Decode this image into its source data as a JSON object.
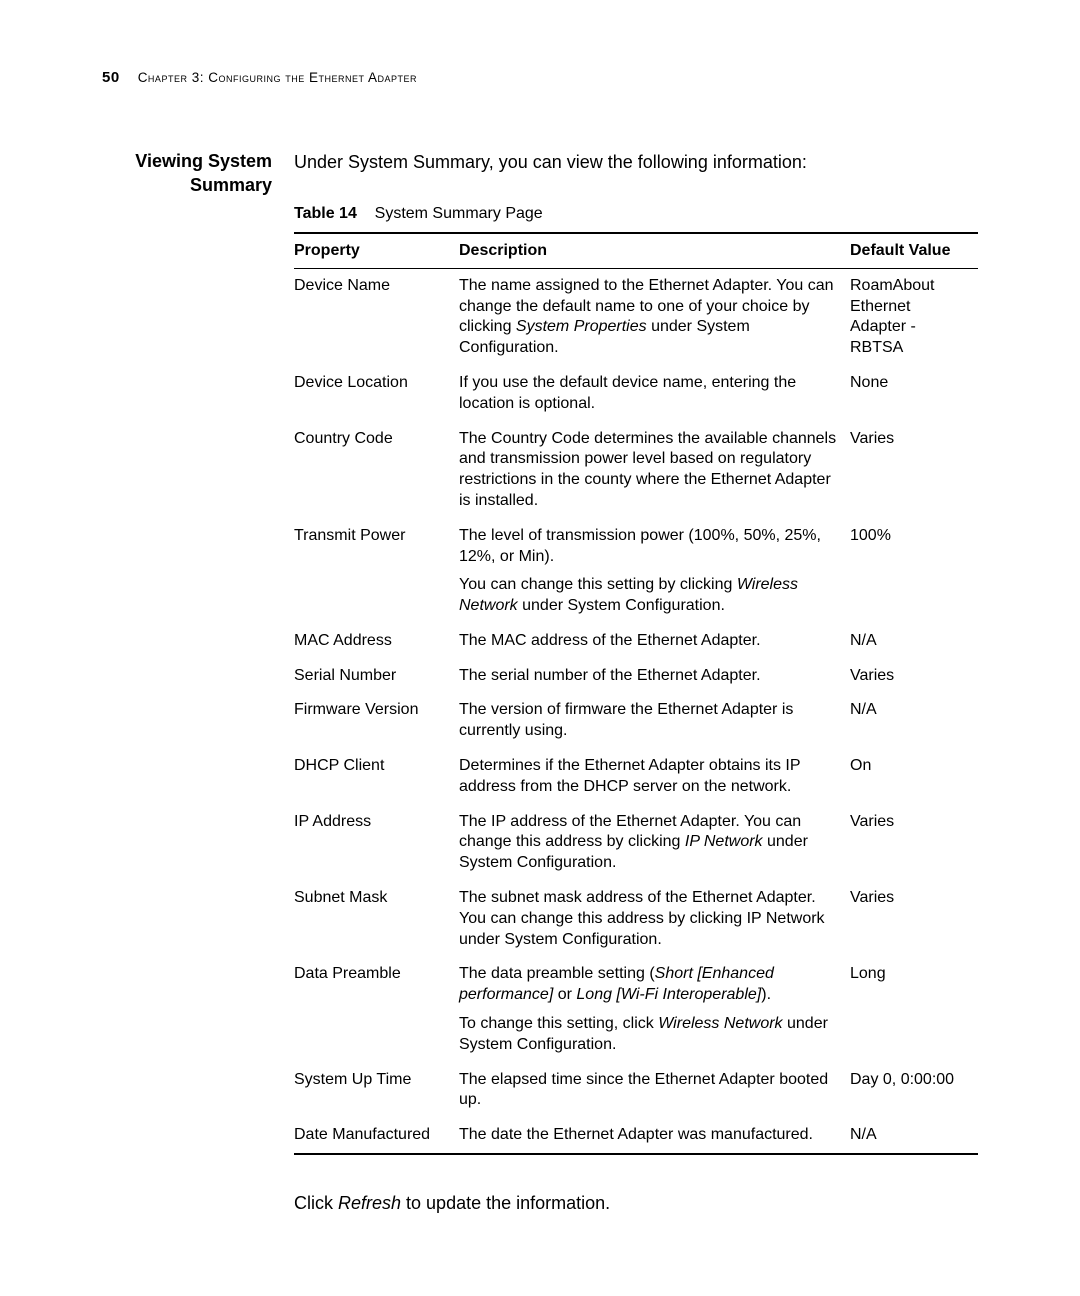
{
  "header": {
    "page_number": "50",
    "chapter_label": "Chapter 3: Configuring the Ethernet Adapter"
  },
  "section": {
    "heading": "Viewing System Summary",
    "intro": "Under System Summary, you can view the following information:"
  },
  "table": {
    "caption_label": "Table 14",
    "caption_text": "System Summary Page",
    "columns": {
      "property": "Property",
      "description": "Description",
      "default_value": "Default Value"
    },
    "rows": [
      {
        "property": "Device Name",
        "desc": [
          [
            {
              "t": "The name assigned to the Ethernet Adapter. You can change the default name to one of your choice by clicking "
            },
            {
              "t": "System Properties",
              "i": true
            },
            {
              "t": " under System Configuration."
            }
          ]
        ],
        "default": "RoamAbout Ethernet Adapter - RBTSA"
      },
      {
        "property": "Device Location",
        "desc": [
          [
            {
              "t": "If you use the default device name, entering the location is optional."
            }
          ]
        ],
        "default": "None"
      },
      {
        "property": "Country Code",
        "desc": [
          [
            {
              "t": "The Country Code determines the available channels and transmission power level based on regulatory restrictions in the county where the Ethernet Adapter is installed."
            }
          ]
        ],
        "default": "Varies"
      },
      {
        "property": "Transmit Power",
        "desc": [
          [
            {
              "t": "The level of transmission power (100%, 50%, 25%, 12%, or Min)."
            }
          ],
          [
            {
              "t": "You can change this setting by clicking "
            },
            {
              "t": "Wireless Network",
              "i": true
            },
            {
              "t": " under System Configuration."
            }
          ]
        ],
        "default": "100%"
      },
      {
        "property": "MAC Address",
        "desc": [
          [
            {
              "t": "The MAC address of the Ethernet Adapter."
            }
          ]
        ],
        "default": "N/A"
      },
      {
        "property": "Serial Number",
        "desc": [
          [
            {
              "t": "The serial number of the Ethernet Adapter."
            }
          ]
        ],
        "default": "Varies"
      },
      {
        "property": "Firmware Version",
        "desc": [
          [
            {
              "t": "The version of firmware the Ethernet Adapter is currently using."
            }
          ]
        ],
        "default": "N/A"
      },
      {
        "property": "DHCP Client",
        "desc": [
          [
            {
              "t": "Determines if the Ethernet Adapter obtains its IP address from the DHCP server on the network."
            }
          ]
        ],
        "default": "On"
      },
      {
        "property": "IP Address",
        "desc": [
          [
            {
              "t": "The IP address of the Ethernet Adapter. You can change this address by clicking "
            },
            {
              "t": "IP Network",
              "i": true
            },
            {
              "t": " under System Configuration."
            }
          ]
        ],
        "default": "Varies"
      },
      {
        "property": "Subnet Mask",
        "desc": [
          [
            {
              "t": "The subnet mask address of the Ethernet Adapter. You can change this address by clicking IP Network under System Configuration."
            }
          ]
        ],
        "default": "Varies"
      },
      {
        "property": "Data Preamble",
        "desc": [
          [
            {
              "t": "The data preamble setting ("
            },
            {
              "t": "Short [Enhanced performance]",
              "i": true
            },
            {
              "t": " or "
            },
            {
              "t": "Long [Wi-Fi Interoperable]",
              "i": true
            },
            {
              "t": ")."
            }
          ],
          [
            {
              "t": "To change this setting, click "
            },
            {
              "t": "Wireless Network",
              "i": true
            },
            {
              "t": " under System Configuration."
            }
          ]
        ],
        "default": "Long"
      },
      {
        "property": "System Up Time",
        "desc": [
          [
            {
              "t": "The elapsed time since the Ethernet Adapter booted up."
            }
          ]
        ],
        "default": "Day 0, 0:00:00"
      },
      {
        "property": "Date Manufactured",
        "desc": [
          [
            {
              "t": "The date the Ethernet Adapter was manufactured."
            }
          ]
        ],
        "default": "N/A"
      }
    ]
  },
  "instruction": {
    "pre": "Click ",
    "action": "Refresh",
    "post": " to update the information."
  }
}
